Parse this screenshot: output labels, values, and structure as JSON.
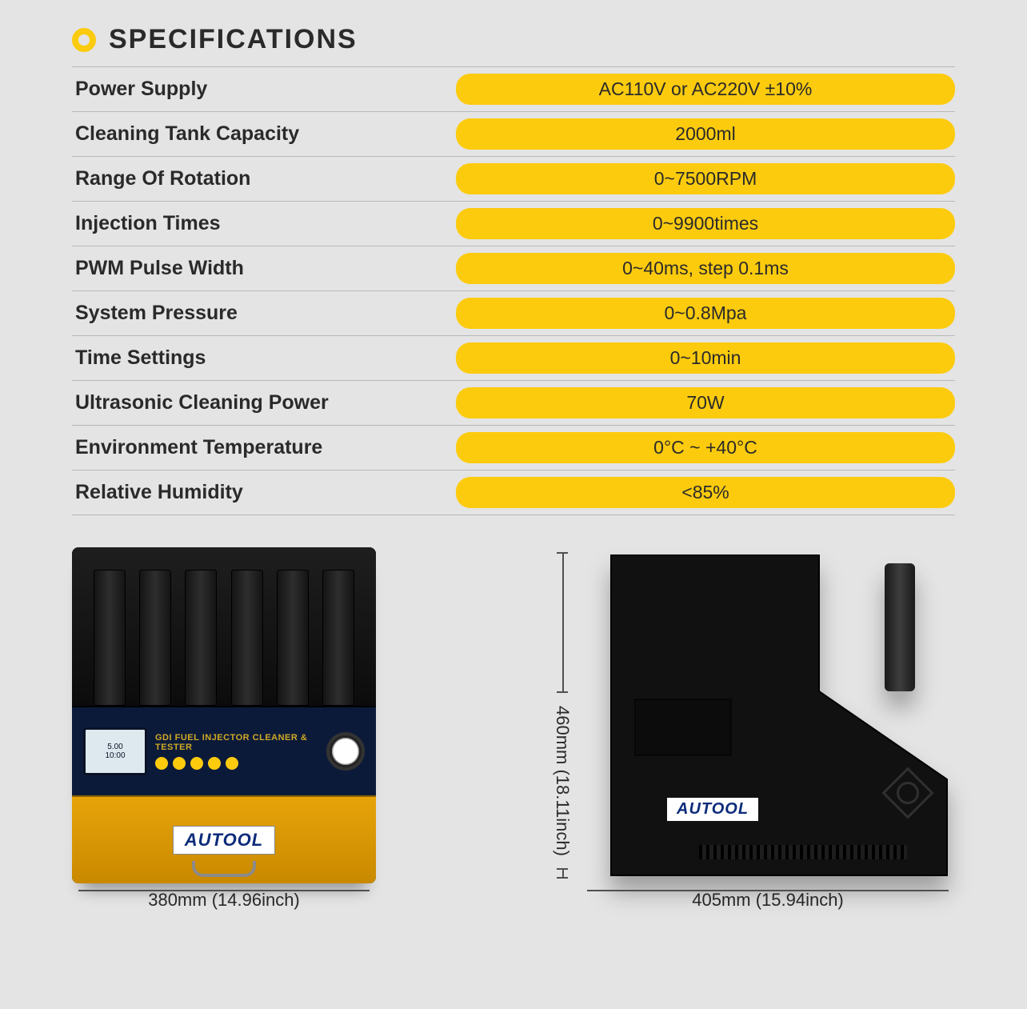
{
  "title": "SPECIFICATIONS",
  "colors": {
    "accent": "#fccb0e",
    "bg": "#e4e4e4",
    "text": "#2a2a2a",
    "brand_text": "#0c2b7a",
    "panel_blue": "#0c1a3a",
    "bottom_gold_top": "#e7a409",
    "bottom_gold_bot": "#c98900",
    "divider": "#b8b8b8"
  },
  "specs": [
    {
      "label": "Power Supply",
      "value": "AC110V or AC220V ±10%"
    },
    {
      "label": "Cleaning Tank Capacity",
      "value": "2000ml"
    },
    {
      "label": "Range Of Rotation",
      "value": "0~7500RPM"
    },
    {
      "label": "Injection Times",
      "value": "0~9900times"
    },
    {
      "label": "PWM Pulse Width",
      "value": "0~40ms, step 0.1ms"
    },
    {
      "label": "System Pressure",
      "value": "0~0.8Mpa"
    },
    {
      "label": "Time Settings",
      "value": "0~10min"
    },
    {
      "label": "Ultrasonic Cleaning Power",
      "value": "70W"
    },
    {
      "label": "Environment Temperature",
      "value": "0°C ~ +40°C"
    },
    {
      "label": "Relative Humidity",
      "value": "<85%"
    }
  ],
  "brand": "AUTOOL",
  "product_label": "GDI FUEL INJECTOR CLEANER & TESTER",
  "screen": {
    "line1": "5.00",
    "line2": "10:00"
  },
  "dimensions": {
    "width_front": "380mm (14.96inch)",
    "height": "460mm (18.11inch)",
    "width_side": "405mm (15.94inch)"
  },
  "typography": {
    "title_fontsize": 34,
    "label_fontsize": 25,
    "value_fontsize": 23,
    "dim_fontsize": 22
  }
}
